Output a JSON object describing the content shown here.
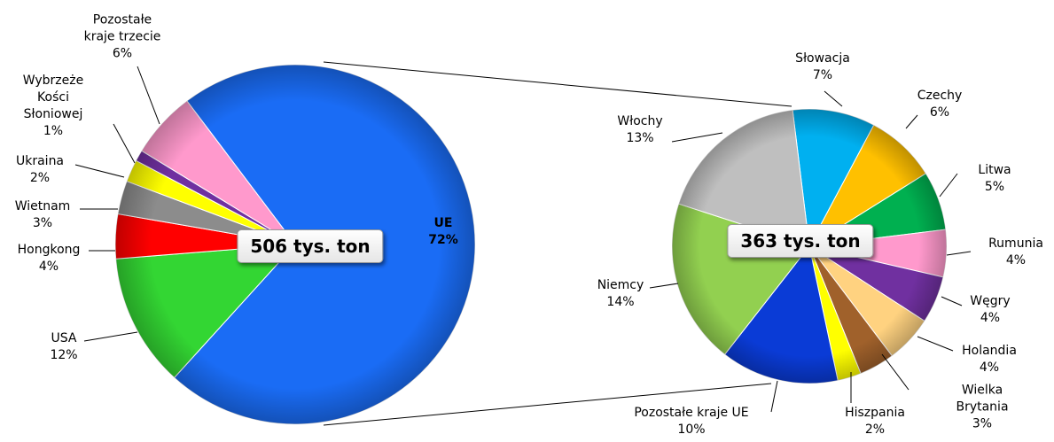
{
  "chart_data": [
    {
      "type": "pie",
      "annotation": "506 tys. ton",
      "categories": [
        "UE",
        "USA",
        "Hongkong",
        "Wietnam",
        "Ukraina",
        "Wybrzeże\nKości\nSłoniowej",
        "Pozostałe\nkraje trzecie"
      ],
      "values": [
        72,
        12,
        4,
        3,
        2,
        1,
        6
      ],
      "value_labels": [
        "72%",
        "12%",
        "4%",
        "3%",
        "2%",
        "1%",
        "6%"
      ],
      "colors": [
        "#1a6cf5",
        "#33d633",
        "#ff0000",
        "#8c8c8c",
        "#ffff00",
        "#7030a0",
        "#ff99cc"
      ]
    },
    {
      "type": "pie",
      "annotation": "363 tys. ton",
      "categories": [
        "Słowacja",
        "Czechy",
        "Litwa",
        "Rumunia",
        "Węgry",
        "Holandia",
        "Wielka Brytania",
        "Hiszpania",
        "Pozostałe kraje UE",
        "Niemcy",
        "Włochy"
      ],
      "values": [
        7,
        6,
        5,
        4,
        4,
        4,
        3,
        2,
        10,
        14,
        13
      ],
      "value_labels": [
        "7%",
        "6%",
        "5%",
        "4%",
        "4%",
        "4%",
        "3%",
        "2%",
        "10%",
        "14%",
        "13%"
      ],
      "colors": [
        "#00b0f0",
        "#ffc000",
        "#00b050",
        "#ff99cc",
        "#7030a0",
        "#ffd280",
        "#a0612b",
        "#ffff00",
        "#0a3bd6",
        "#92d050",
        "#bfbfbf"
      ]
    }
  ]
}
